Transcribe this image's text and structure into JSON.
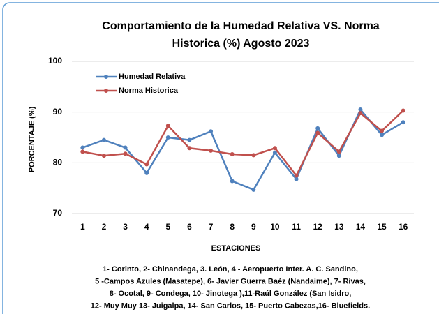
{
  "chart_data": {
    "type": "line",
    "title": [
      "Comportamiento de la Humedad Relativa VS. Norma",
      "Historica (%)  Agosto 2023"
    ],
    "x_label": "ESTACIONES",
    "y_label": "PORCENTAJE (%)",
    "categories": [
      "1",
      "2",
      "3",
      "4",
      "5",
      "6",
      "7",
      "8",
      "9",
      "10",
      "11",
      "12",
      "13",
      "14",
      "15",
      "16"
    ],
    "series": [
      {
        "name": "Humedad Relativa",
        "color": "#4f81bd",
        "values": [
          83.0,
          84.5,
          83.0,
          78.0,
          85.0,
          84.5,
          86.2,
          76.4,
          74.7,
          82.0,
          76.8,
          86.8,
          81.4,
          90.5,
          85.5,
          88.0
        ]
      },
      {
        "name": "Norma Historica",
        "color": "#c0504d",
        "values": [
          82.2,
          81.4,
          81.8,
          79.7,
          87.3,
          82.9,
          82.4,
          81.7,
          81.5,
          82.9,
          77.5,
          85.9,
          82.2,
          89.8,
          86.3,
          90.3
        ]
      }
    ],
    "ylim": [
      70,
      100
    ],
    "yticks": [
      70,
      80,
      90,
      100
    ],
    "grid": true,
    "legend": "top-left",
    "notes": [
      "1- Corinto,  2- Chinandega,  3. León, 4 - Aeropuerto Inter. A. C. Sandino,",
      "5 -Campos Azules (Masatepe), 6- Javier Guerra Baéz (Nandaime), 7- Rivas,",
      "8- Ocotal, 9- Condega, 10- Jinotega ),11-Raúl González (San Isidro,",
      "12- Muy Muy 13- Juigalpa, 14- San Carlos, 15- Puerto Cabezas,16- Bluefields."
    ]
  }
}
